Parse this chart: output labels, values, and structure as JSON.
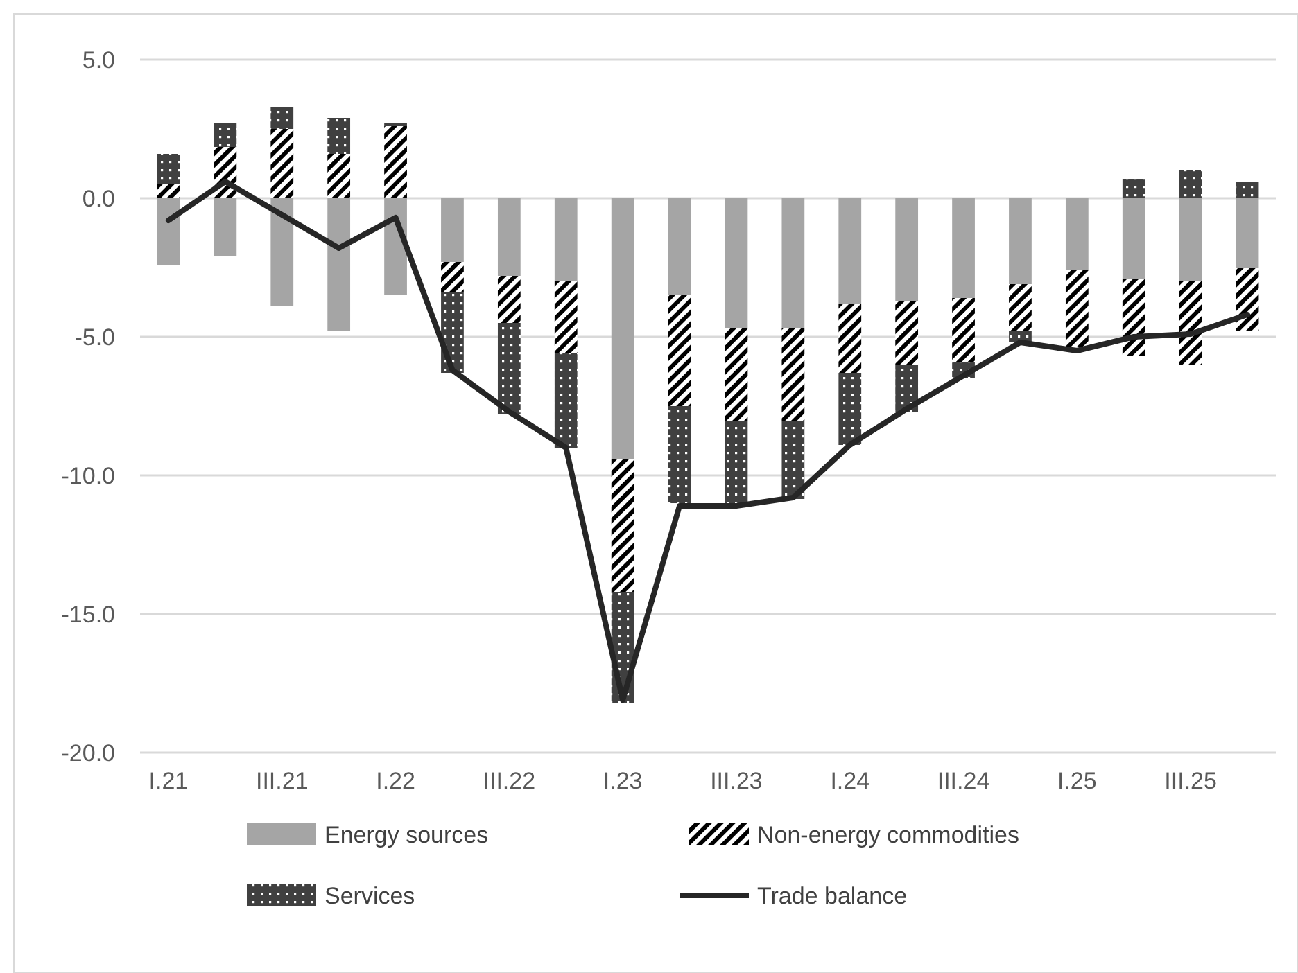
{
  "chart_data": {
    "type": "bar",
    "stacked": true,
    "categories": [
      "I.21",
      null,
      "III.21",
      null,
      "I.22",
      null,
      "III.22",
      null,
      "I.23",
      null,
      "III.23",
      null,
      "I.24",
      null,
      "III.24",
      null,
      "I.25",
      null,
      "III.25",
      null
    ],
    "series": [
      {
        "name": "Energy sources",
        "color": "#a5a5a5",
        "values": [
          -2.4,
          -2.1,
          -3.9,
          -4.8,
          -3.5,
          -2.3,
          -2.8,
          -3.0,
          -9.4,
          -3.5,
          -4.7,
          -4.7,
          -3.8,
          -3.7,
          -3.6,
          -3.1,
          -2.6,
          -2.9,
          -3.0,
          -2.5
        ]
      },
      {
        "name": "Non-energy commodities",
        "color": "#000000",
        "values": [
          0.5,
          1.85,
          2.5,
          1.6,
          2.6,
          -1.1,
          -1.7,
          -2.6,
          -4.8,
          -4.0,
          -3.35,
          -3.35,
          -2.5,
          -2.3,
          -2.3,
          -1.7,
          -2.75,
          -2.8,
          -3.0,
          -2.3
        ]
      },
      {
        "name": "Services",
        "color": "#404040",
        "values": [
          1.1,
          0.85,
          0.8,
          1.3,
          0.1,
          -2.9,
          -3.3,
          -3.4,
          -4.0,
          -3.5,
          -2.95,
          -2.8,
          -2.6,
          -1.7,
          -0.6,
          -0.4,
          0,
          0.7,
          1.0,
          0.6
        ]
      },
      {
        "name": "Trade balance",
        "type": "line",
        "color": "#262626",
        "values": [
          -0.8,
          0.6,
          -0.6,
          -1.8,
          -0.7,
          -6.2,
          -7.7,
          -9.0,
          -18.1,
          -11.1,
          -11.1,
          -10.8,
          -8.9,
          -7.6,
          -6.4,
          -5.2,
          -5.5,
          -5.0,
          -4.9,
          -4.2
        ]
      }
    ],
    "ylim": [
      -20,
      5
    ],
    "yticks": [
      {
        "value": -20,
        "label": "-20.0"
      },
      {
        "value": -15,
        "label": "-15.0"
      },
      {
        "value": -10,
        "label": "-10.0"
      },
      {
        "value": -5,
        "label": "-5.0"
      },
      {
        "value": 0,
        "label": "0.0"
      },
      {
        "value": 5,
        "label": "5.0"
      }
    ],
    "grid": "y",
    "legend": "bottom",
    "marker": "none",
    "line_style": "solid"
  }
}
